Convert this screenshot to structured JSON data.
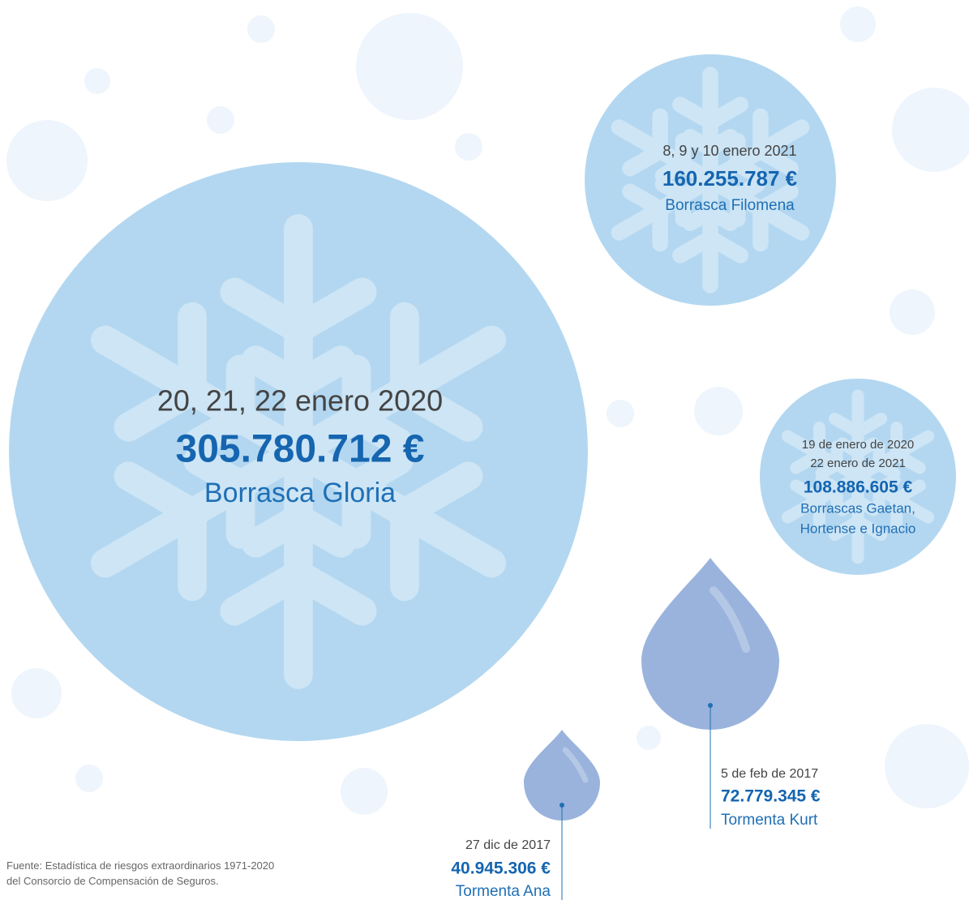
{
  "events": [
    {
      "dates": [
        "20, 21, 22 enero 2020"
      ],
      "amount": "305.780.712 €",
      "name": [
        "Borrasca Gloria"
      ]
    },
    {
      "dates": [
        "8, 9 y 10 enero 2021"
      ],
      "amount": "160.255.787 €",
      "name": [
        "Borrasca Filomena"
      ]
    },
    {
      "dates": [
        "19 de enero de 2020",
        "22 enero de 2021"
      ],
      "amount": "108.886.605 €",
      "name": [
        "Borrascas Gaetan,",
        "Hortense e Ignacio"
      ]
    },
    {
      "dates": [
        "5 de feb de 2017"
      ],
      "amount": "72.779.345 €",
      "name": [
        "Tormenta Kurt"
      ]
    },
    {
      "dates": [
        "27 dic de 2017"
      ],
      "amount": "40.945.306 €",
      "name": [
        "Tormenta Ana"
      ]
    }
  ],
  "source": [
    "Fuente: Estadística de riesgos extraordinarios 1971-2020",
    "del Consorcio de Compensación de Seguros."
  ]
}
